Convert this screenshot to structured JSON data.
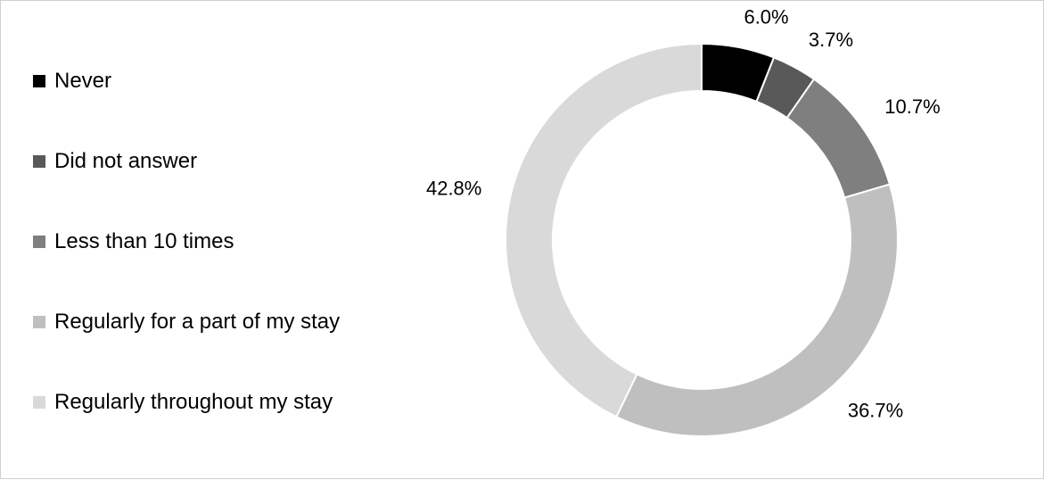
{
  "chart_data": {
    "type": "pie",
    "donut": true,
    "categories": [
      "Never",
      "Did not answer",
      "Less than 10 times",
      "Regularly for a part of my stay",
      "Regularly throughout my stay"
    ],
    "values": [
      6.0,
      3.7,
      10.7,
      36.7,
      42.8
    ],
    "data_labels": [
      "6.0%",
      "3.7%",
      "10.7%",
      "36.7%",
      "42.8%"
    ],
    "colors": [
      "#000000",
      "#595959",
      "#7f7f7f",
      "#bfbfbf",
      "#d9d9d9"
    ],
    "legend_position": "left",
    "title": ""
  }
}
